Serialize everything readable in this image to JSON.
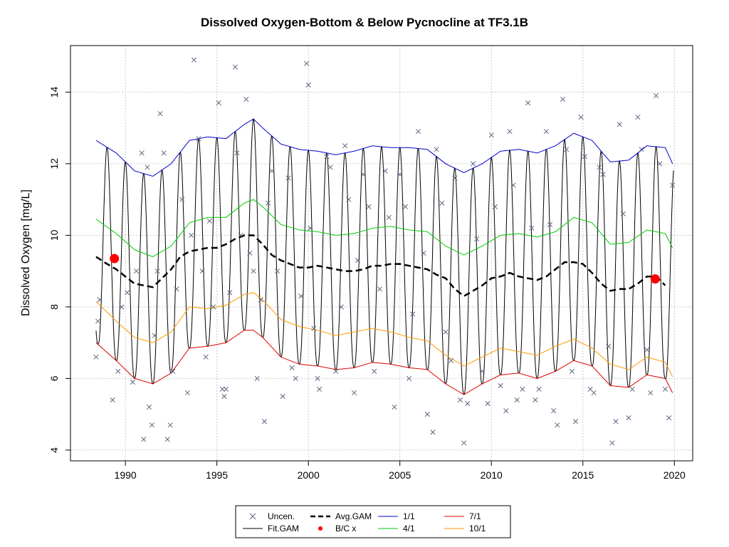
{
  "chart_data": {
    "type": "line",
    "title": "Dissolved Oxygen-Bottom & Below Pycnocline at TF3.1B",
    "xlabel": "",
    "ylabel": "Dissolved Oxygen [mg/L]",
    "xlim": [
      1987.0,
      2021.0
    ],
    "ylim": [
      3.7,
      15.3
    ],
    "x_ticks": [
      1990,
      1995,
      2000,
      2005,
      2010,
      2015,
      2020
    ],
    "y_ticks": [
      4,
      6,
      8,
      10,
      12,
      14
    ],
    "grid": true,
    "legend_position": "bottom",
    "colors": {
      "uncen": "#5a6680",
      "fit_gam": "#000000",
      "avg_gam": "#000000",
      "bc": "#ff0000",
      "jan1": "#0000cc",
      "apr1": "#00cc00",
      "jul1": "#dd0000",
      "oct1": "#ff9900",
      "grid": "#cccccc"
    },
    "legend": [
      {
        "key": "uncen",
        "label": "Uncen.",
        "style": "x"
      },
      {
        "key": "fit_gam",
        "label": "Fit.GAM",
        "style": "line"
      },
      {
        "key": "avg_gam",
        "label": "Avg.GAM",
        "style": "dash"
      },
      {
        "key": "bc",
        "label": "B/C x",
        "style": "dot"
      },
      {
        "key": "jan1",
        "label": "1/1",
        "style": "line"
      },
      {
        "key": "apr1",
        "label": "4/1",
        "style": "line"
      },
      {
        "key": "jul1",
        "label": "7/1",
        "style": "line"
      },
      {
        "key": "oct1",
        "label": "10/1",
        "style": "line"
      }
    ],
    "series": [
      {
        "name": "1/1",
        "key": "jan1",
        "x": [
          1988.4,
          1989.5,
          1990.5,
          1991.5,
          1992.5,
          1993.5,
          1994.5,
          1995.5,
          1996.5,
          1997.0,
          1997.5,
          1998.5,
          1999.5,
          2000.5,
          2001.5,
          2002.5,
          2003.5,
          2004.5,
          2005.5,
          2006.5,
          2007.5,
          2008.5,
          2009.5,
          2010.5,
          2011.5,
          2012.5,
          2013.5,
          2014.5,
          2015.5,
          2016.5,
          2017.5,
          2018.5,
          2019.5,
          2019.9
        ],
        "y": [
          12.65,
          12.3,
          11.8,
          11.65,
          12.0,
          12.65,
          12.75,
          12.7,
          13.1,
          13.25,
          13.0,
          12.55,
          12.4,
          12.35,
          12.25,
          12.35,
          12.5,
          12.45,
          12.45,
          12.4,
          12.0,
          11.75,
          12.0,
          12.35,
          12.4,
          12.3,
          12.5,
          12.85,
          12.65,
          12.05,
          12.1,
          12.5,
          12.45,
          12.0
        ]
      },
      {
        "name": "4/1",
        "key": "apr1",
        "x": [
          1988.4,
          1989.5,
          1990.5,
          1991.5,
          1992.5,
          1993.5,
          1994.5,
          1995.5,
          1996.5,
          1997.0,
          1997.5,
          1998.5,
          1999.5,
          2000.5,
          2001.5,
          2002.5,
          2003.5,
          2004.5,
          2005.5,
          2006.5,
          2007.5,
          2008.5,
          2009.5,
          2010.5,
          2011.5,
          2012.5,
          2013.5,
          2014.5,
          2015.5,
          2016.5,
          2017.5,
          2018.5,
          2019.5,
          2019.9
        ],
        "y": [
          10.45,
          10.05,
          9.6,
          9.4,
          9.7,
          10.35,
          10.5,
          10.5,
          10.9,
          11.0,
          10.8,
          10.3,
          10.15,
          10.1,
          10.0,
          10.05,
          10.2,
          10.25,
          10.15,
          10.1,
          9.7,
          9.45,
          9.7,
          10.0,
          10.05,
          9.95,
          10.1,
          10.5,
          10.35,
          9.75,
          9.8,
          10.15,
          10.05,
          9.65
        ]
      },
      {
        "name": "7/1",
        "key": "jul1",
        "x": [
          1988.4,
          1989.5,
          1990.5,
          1991.5,
          1992.5,
          1993.5,
          1994.5,
          1995.5,
          1996.5,
          1997.0,
          1997.5,
          1998.5,
          1999.5,
          2000.5,
          2001.5,
          2002.5,
          2003.5,
          2004.5,
          2005.5,
          2006.5,
          2007.5,
          2008.5,
          2009.5,
          2010.5,
          2011.5,
          2012.5,
          2013.5,
          2014.5,
          2015.5,
          2016.5,
          2017.5,
          2018.5,
          2019.5,
          2019.9
        ],
        "y": [
          7.0,
          6.5,
          6.0,
          5.85,
          6.15,
          6.85,
          6.9,
          7.0,
          7.35,
          7.35,
          7.15,
          6.6,
          6.4,
          6.35,
          6.25,
          6.3,
          6.45,
          6.4,
          6.3,
          6.25,
          5.85,
          5.55,
          5.85,
          6.1,
          6.15,
          6.0,
          6.2,
          6.5,
          6.35,
          5.8,
          5.75,
          6.1,
          6.0,
          5.6
        ]
      },
      {
        "name": "10/1",
        "key": "oct1",
        "x": [
          1988.4,
          1989.5,
          1990.5,
          1991.5,
          1992.5,
          1993.5,
          1994.5,
          1995.5,
          1996.5,
          1997.0,
          1997.5,
          1998.5,
          1999.5,
          2000.5,
          2001.5,
          2002.5,
          2003.5,
          2004.5,
          2005.5,
          2006.5,
          2007.5,
          2008.5,
          2009.5,
          2010.5,
          2011.5,
          2012.5,
          2013.5,
          2014.5,
          2015.5,
          2016.5,
          2017.5,
          2018.5,
          2019.5,
          2019.9
        ],
        "y": [
          8.15,
          7.6,
          7.15,
          7.0,
          7.3,
          8.0,
          7.95,
          8.05,
          8.35,
          8.4,
          8.2,
          7.65,
          7.45,
          7.35,
          7.2,
          7.3,
          7.4,
          7.3,
          7.15,
          7.05,
          6.65,
          6.35,
          6.6,
          6.85,
          6.75,
          6.65,
          6.9,
          7.1,
          6.85,
          6.4,
          6.25,
          6.6,
          6.45,
          6.05
        ]
      },
      {
        "name": "Avg.GAM",
        "key": "avg_gam",
        "x": [
          1988.4,
          1989.0,
          1989.5,
          1990.0,
          1990.5,
          1991.0,
          1991.5,
          1992.0,
          1992.5,
          1993.0,
          1993.5,
          1994.0,
          1994.5,
          1995.0,
          1995.5,
          1996.0,
          1996.5,
          1997.0,
          1997.5,
          1998.0,
          1998.5,
          1999.0,
          1999.5,
          2000.0,
          2000.5,
          2001.0,
          2001.5,
          2002.0,
          2002.5,
          2003.0,
          2003.5,
          2004.0,
          2004.5,
          2005.0,
          2005.5,
          2006.0,
          2006.5,
          2007.0,
          2007.5,
          2008.0,
          2008.5,
          2009.0,
          2009.5,
          2010.0,
          2010.5,
          2011.0,
          2011.5,
          2012.0,
          2012.5,
          2013.0,
          2013.5,
          2014.0,
          2014.5,
          2015.0,
          2015.5,
          2016.0,
          2016.5,
          2017.0,
          2017.5,
          2018.0,
          2018.5,
          2019.0,
          2019.5
        ],
        "y": [
          9.4,
          9.2,
          9.05,
          8.85,
          8.65,
          8.6,
          8.55,
          8.8,
          9.05,
          9.4,
          9.55,
          9.6,
          9.65,
          9.65,
          9.75,
          9.9,
          10.0,
          10.0,
          9.75,
          9.45,
          9.3,
          9.2,
          9.1,
          9.1,
          9.15,
          9.1,
          9.05,
          9.0,
          9.0,
          9.05,
          9.15,
          9.15,
          9.2,
          9.2,
          9.15,
          9.1,
          9.05,
          8.9,
          8.8,
          8.5,
          8.3,
          8.45,
          8.6,
          8.8,
          8.85,
          8.95,
          8.85,
          8.8,
          8.75,
          8.85,
          9.05,
          9.25,
          9.25,
          9.2,
          8.95,
          8.65,
          8.45,
          8.5,
          8.5,
          8.65,
          8.85,
          8.85,
          8.6
        ]
      },
      {
        "name": "Fit.GAM",
        "key": "fit_gam",
        "amp_source": [
          "jan1",
          "jul1"
        ],
        "x_start": 1988.4,
        "x_end": 2019.95,
        "dip_phase": 0.5,
        "description_values": {
          "peak_month": "Jan",
          "trough_month": "Jul"
        }
      },
      {
        "name": "B/C x",
        "key": "bc",
        "x": [
          1989.4,
          2018.95
        ],
        "y": [
          9.35,
          8.78
        ]
      },
      {
        "name": "Uncen.",
        "key": "uncen",
        "x": [
          1988.4,
          1988.5,
          1988.6,
          1989.3,
          1989.6,
          1989.8,
          1990.1,
          1990.4,
          1990.6,
          1990.9,
          1991.0,
          1991.2,
          1991.3,
          1991.45,
          1991.6,
          1991.75,
          1991.9,
          1992.1,
          1992.3,
          1992.45,
          1992.6,
          1992.8,
          1993.1,
          1993.4,
          1993.6,
          1993.75,
          1994.0,
          1994.2,
          1994.4,
          1994.6,
          1994.8,
          1995.1,
          1995.3,
          1995.4,
          1995.5,
          1995.7,
          1996.0,
          1996.1,
          1996.3,
          1996.6,
          1996.8,
          1997.0,
          1997.2,
          1997.4,
          1997.6,
          1997.8,
          1998.0,
          1998.3,
          1998.6,
          1998.9,
          1999.1,
          1999.3,
          1999.6,
          1999.9,
          2000.0,
          2000.1,
          2000.3,
          2000.5,
          2000.6,
          2001.0,
          2001.2,
          2001.5,
          2001.8,
          2002.0,
          2002.2,
          2002.5,
          2002.7,
          2003.0,
          2003.3,
          2003.6,
          2003.9,
          2004.2,
          2004.4,
          2004.7,
          2005.0,
          2005.3,
          2005.5,
          2005.7,
          2006.0,
          2006.3,
          2006.5,
          2006.8,
          2007.0,
          2007.3,
          2007.5,
          2007.8,
          2008.0,
          2008.3,
          2008.5,
          2008.7,
          2009.0,
          2009.2,
          2009.5,
          2009.8,
          2010.0,
          2010.2,
          2010.5,
          2010.8,
          2011.0,
          2011.2,
          2011.4,
          2011.7,
          2012.0,
          2012.2,
          2012.4,
          2012.6,
          2013.0,
          2013.2,
          2013.4,
          2013.6,
          2013.9,
          2014.1,
          2014.4,
          2014.6,
          2014.9,
          2015.1,
          2015.4,
          2015.6,
          2015.9,
          2016.1,
          2016.4,
          2016.6,
          2016.8,
          2017.0,
          2017.2,
          2017.5,
          2017.7,
          2018.0,
          2018.2,
          2018.5,
          2018.7,
          2019.0,
          2019.2,
          2019.5,
          2019.7,
          2019.9
        ],
        "y": [
          6.6,
          7.6,
          8.2,
          5.4,
          6.2,
          8.0,
          8.4,
          5.9,
          9.0,
          12.3,
          4.3,
          11.9,
          5.2,
          4.7,
          7.2,
          9.0,
          13.4,
          12.3,
          4.3,
          4.7,
          6.2,
          8.5,
          11.0,
          5.6,
          10.0,
          14.9,
          12.7,
          9.0,
          6.6,
          10.4,
          8.0,
          13.7,
          5.7,
          5.5,
          5.7,
          8.4,
          14.7,
          12.3,
          10.0,
          13.8,
          9.5,
          9.0,
          6.0,
          8.2,
          4.8,
          10.9,
          11.8,
          9.0,
          5.5,
          11.6,
          6.3,
          6.0,
          8.3,
          14.8,
          14.2,
          10.2,
          7.4,
          6.0,
          5.7,
          12.2,
          11.9,
          6.2,
          8.0,
          12.5,
          11.0,
          5.6,
          9.3,
          11.7,
          10.8,
          6.2,
          8.5,
          11.8,
          10.5,
          5.2,
          11.7,
          10.8,
          6.0,
          7.8,
          12.9,
          9.5,
          5.0,
          4.5,
          12.4,
          10.9,
          7.3,
          6.5,
          11.6,
          5.4,
          4.2,
          5.3,
          12.0,
          9.9,
          6.2,
          5.3,
          12.8,
          10.8,
          5.8,
          5.1,
          12.9,
          11.4,
          5.4,
          5.7,
          13.7,
          10.2,
          5.4,
          5.7,
          12.9,
          10.3,
          5.1,
          4.7,
          13.8,
          12.4,
          6.2,
          4.8,
          13.3,
          12.2,
          5.7,
          5.6,
          11.9,
          11.7,
          6.9,
          4.2,
          4.8,
          13.1,
          10.6,
          4.9,
          5.7,
          13.3,
          12.4,
          6.8,
          5.6,
          13.9,
          12.0,
          5.7,
          4.9,
          11.4
        ]
      }
    ]
  }
}
